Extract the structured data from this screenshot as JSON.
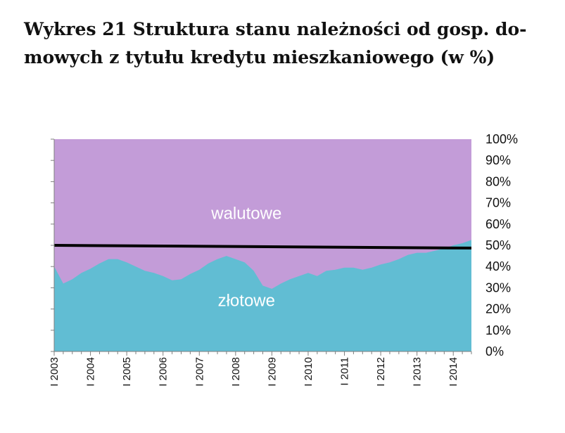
{
  "title_lines": [
    "Wykres 21 Struktura stanu należności od gosp. do-",
    "mowych z tytułu kredytu mieszkaniowego (w %)"
  ],
  "colors": {
    "zlotowe": "#61bdd3",
    "walutowe": "#c39cd8",
    "trend": "#000000"
  },
  "chart_data": {
    "type": "area",
    "stacked": true,
    "percent": true,
    "x": [
      "I 2003",
      "I 2004",
      "I 2005",
      "I 2006",
      "I 2007",
      "I 2008",
      "I 2009",
      "I 2010",
      "I 2011",
      "I 2012",
      "I 2013",
      "I 2014"
    ],
    "y_ticks": [
      "0%",
      "10%",
      "20%",
      "30%",
      "40%",
      "50%",
      "60%",
      "70%",
      "80%",
      "90%",
      "100%"
    ],
    "ylim": [
      0,
      100
    ],
    "y_axis_side": "right",
    "area_labels": [
      "walutowe",
      "złotowe"
    ],
    "series": [
      {
        "name": "złotowe",
        "points": [
          [
            2003.0,
            40
          ],
          [
            2003.25,
            32
          ],
          [
            2003.5,
            34
          ],
          [
            2003.75,
            37
          ],
          [
            2004.0,
            39
          ],
          [
            2004.25,
            41.5
          ],
          [
            2004.5,
            43.5
          ],
          [
            2004.75,
            43.5
          ],
          [
            2005.0,
            42
          ],
          [
            2005.25,
            40
          ],
          [
            2005.5,
            38
          ],
          [
            2005.75,
            37
          ],
          [
            2006.0,
            35.5
          ],
          [
            2006.25,
            33.5
          ],
          [
            2006.5,
            34
          ],
          [
            2006.75,
            36.5
          ],
          [
            2007.0,
            38.5
          ],
          [
            2007.25,
            41.5
          ],
          [
            2007.5,
            43.5
          ],
          [
            2007.75,
            45
          ],
          [
            2008.0,
            43.5
          ],
          [
            2008.25,
            42
          ],
          [
            2008.5,
            38
          ],
          [
            2008.75,
            31
          ],
          [
            2009.0,
            29.5
          ],
          [
            2009.25,
            32
          ],
          [
            2009.5,
            34
          ],
          [
            2009.75,
            35.5
          ],
          [
            2010.0,
            37
          ],
          [
            2010.25,
            35.5
          ],
          [
            2010.5,
            38
          ],
          [
            2010.75,
            38.5
          ],
          [
            2011.0,
            39.5
          ],
          [
            2011.25,
            39.5
          ],
          [
            2011.5,
            38.5
          ],
          [
            2011.75,
            39.5
          ],
          [
            2012.0,
            41
          ],
          [
            2012.25,
            42
          ],
          [
            2012.5,
            43.5
          ],
          [
            2012.75,
            45.5
          ],
          [
            2013.0,
            46.5
          ],
          [
            2013.25,
            46.5
          ],
          [
            2013.5,
            47.5
          ],
          [
            2013.75,
            48.5
          ],
          [
            2014.0,
            50
          ],
          [
            2014.25,
            51
          ],
          [
            2014.5,
            52.5
          ]
        ]
      },
      {
        "name": "walutowe",
        "complement_of": "złotowe"
      }
    ],
    "trend_line": {
      "start": [
        2003.0,
        50.0
      ],
      "end": [
        2014.5,
        48.7
      ]
    }
  }
}
